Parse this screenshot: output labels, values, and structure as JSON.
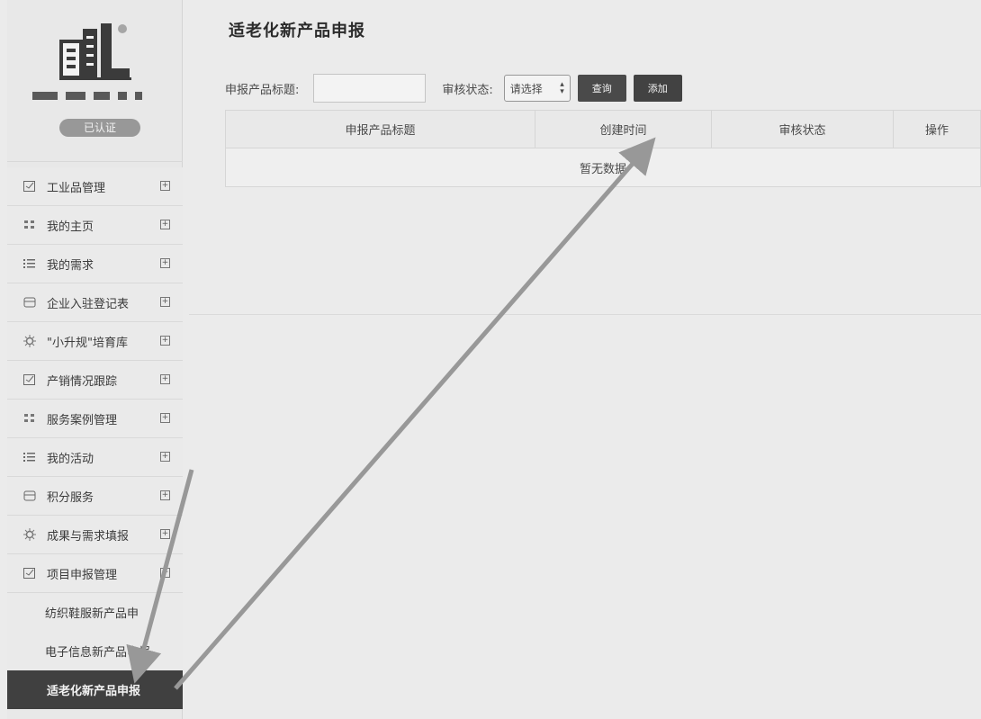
{
  "sidebar": {
    "auth_badge": "已认证",
    "items": [
      {
        "label": "工业品管理",
        "icon": "form-icon"
      },
      {
        "label": "我的主页",
        "icon": "grid-icon"
      },
      {
        "label": "我的需求",
        "icon": "list-icon"
      },
      {
        "label": "企业入驻登记表",
        "icon": "store-icon"
      },
      {
        "label": "\"小升规\"培育库",
        "icon": "gear-icon"
      },
      {
        "label": "产销情况跟踪",
        "icon": "form-icon"
      },
      {
        "label": "服务案例管理",
        "icon": "grid-icon"
      },
      {
        "label": "我的活动",
        "icon": "list-icon"
      },
      {
        "label": "积分服务",
        "icon": "store-icon"
      },
      {
        "label": "成果与需求填报",
        "icon": "gear-icon"
      },
      {
        "label": "项目申报管理",
        "icon": "form-icon"
      }
    ],
    "sub_items": [
      {
        "label": "纺织鞋服新产品申"
      },
      {
        "label": "电子信息新产品申报"
      },
      {
        "label": "适老化新产品申报"
      }
    ],
    "expand_glyph": "+"
  },
  "main": {
    "title": "适老化新产品申报",
    "filter": {
      "title_label": "申报产品标题:",
      "title_value": "",
      "status_label": "审核状态:",
      "status_selected": "请选择",
      "query_button": "查询",
      "add_button": "添加"
    },
    "table": {
      "columns": [
        "申报产品标题",
        "创建时间",
        "审核状态",
        "操作"
      ],
      "empty_text": "暂无数据"
    }
  }
}
